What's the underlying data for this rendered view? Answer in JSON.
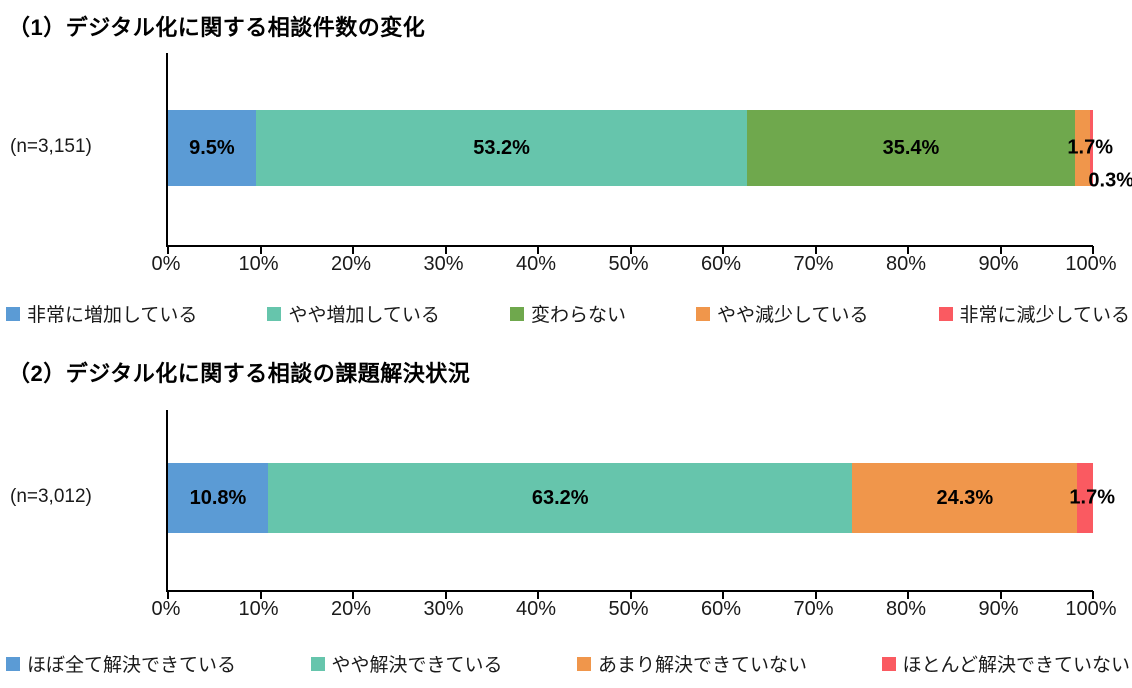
{
  "page_background": "#FFFFFF",
  "chart_data": [
    {
      "type": "bar",
      "stacked": true,
      "orientation": "horizontal",
      "title": "（1）デジタル化に関する相談件数の変化",
      "n_label": "(n=3,151)",
      "categories": [
        "非常に増加している",
        "やや増加している",
        "変わらない",
        "やや減少している",
        "非常に減少している"
      ],
      "values": [
        9.5,
        53.2,
        35.4,
        1.7,
        0.3
      ],
      "labels": [
        "9.5%",
        "53.2%",
        "35.4%",
        "1.7%",
        "0.3%"
      ],
      "colors": [
        "#5B9BD5",
        "#66C5AC",
        "#6FA84D",
        "#F0964B",
        "#FA5A61"
      ],
      "xlim": [
        0,
        100
      ],
      "x_tick_labels": [
        "0%",
        "10%",
        "20%",
        "30%",
        "40%",
        "50%",
        "60%",
        "70%",
        "80%",
        "90%",
        "100%"
      ],
      "grid": false,
      "legend_position": "bottom"
    },
    {
      "type": "bar",
      "stacked": true,
      "orientation": "horizontal",
      "title": "（2）デジタル化に関する相談の課題解決状況",
      "n_label": "(n=3,012)",
      "categories": [
        "ほぼ全て解決できている",
        "やや解決できている",
        "あまり解決できていない",
        "ほとんど解決できていない"
      ],
      "values": [
        10.8,
        63.2,
        24.3,
        1.7
      ],
      "labels": [
        "10.8%",
        "63.2%",
        "24.3%",
        "1.7%"
      ],
      "colors": [
        "#5B9BD5",
        "#66C5AC",
        "#F0964B",
        "#FA5A61"
      ],
      "xlim": [
        0,
        100
      ],
      "x_tick_labels": [
        "0%",
        "10%",
        "20%",
        "30%",
        "40%",
        "50%",
        "60%",
        "70%",
        "80%",
        "90%",
        "100%"
      ],
      "grid": false,
      "legend_position": "bottom"
    }
  ]
}
